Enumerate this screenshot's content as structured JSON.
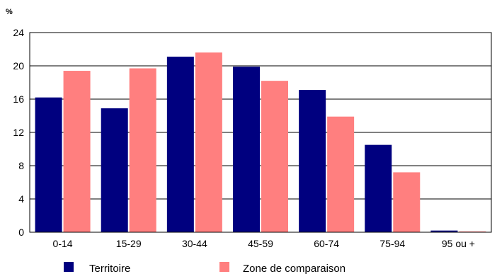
{
  "chart_data": {
    "type": "bar",
    "unit_label": "%",
    "categories": [
      "0-14",
      "15-29",
      "30-44",
      "45-59",
      "60-74",
      "75-94",
      "95 ou +"
    ],
    "series": [
      {
        "name": "Territoire",
        "color": "#00007f",
        "values": [
          16.2,
          14.9,
          21.1,
          19.9,
          17.1,
          10.5,
          0.2
        ]
      },
      {
        "name": "Zone de comparaison",
        "color": "#ff7f7f",
        "values": [
          19.4,
          19.7,
          21.6,
          18.2,
          13.9,
          7.2,
          0.1
        ]
      }
    ],
    "y_ticks": [
      "0",
      "4",
      "8",
      "12",
      "16",
      "20",
      "24"
    ],
    "ylim": [
      0,
      24
    ],
    "grid": true,
    "legend_position": "bottom"
  }
}
